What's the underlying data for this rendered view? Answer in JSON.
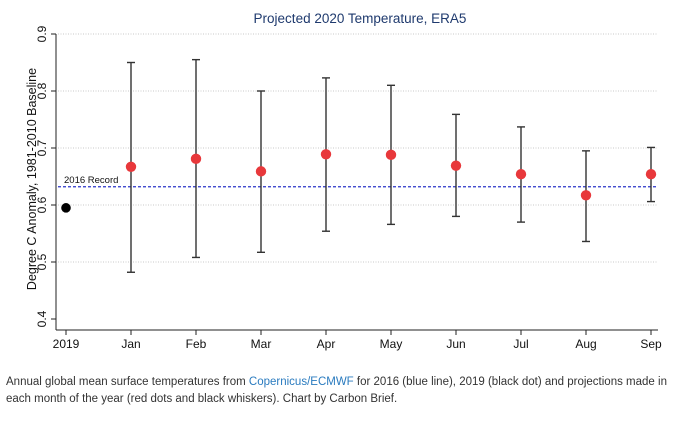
{
  "chart_data": {
    "type": "scatter",
    "title": "Projected 2020 Temperature, ERA5",
    "ylabel": "Degree C Anomaly, 1981-2010 Baseline",
    "xlabel": "",
    "ylim": [
      0.4,
      0.9
    ],
    "yticks": [
      "0.4",
      "0.5",
      "0.6",
      "0.7",
      "0.8",
      "0.9"
    ],
    "grid": true,
    "categories": [
      "2019",
      "Jan",
      "Feb",
      "Mar",
      "Apr",
      "May",
      "Jun",
      "Jul",
      "Aug",
      "Sep"
    ],
    "record": {
      "label": "2016 Record",
      "value": 0.632,
      "color": "#2b35c9"
    },
    "observed": {
      "name": "2019",
      "value": 0.595,
      "color": "#000000"
    },
    "series": [
      {
        "name": "Projection",
        "color": "#e8383b",
        "values": [
          null,
          0.667,
          0.681,
          0.659,
          0.689,
          0.688,
          0.669,
          0.654,
          0.617,
          0.654
        ],
        "low": [
          null,
          0.482,
          0.508,
          0.517,
          0.554,
          0.566,
          0.58,
          0.57,
          0.536,
          0.606
        ],
        "high": [
          null,
          0.85,
          0.855,
          0.8,
          0.823,
          0.81,
          0.759,
          0.737,
          0.695,
          0.701
        ]
      }
    ]
  },
  "caption": {
    "prefix": "Annual global mean surface temperatures from ",
    "link": "Copernicus/ECMWF",
    "suffix": " for 2016 (blue line), 2019 (black dot) and projections made in each month of the year (red dots and black whiskers). Chart by Carbon Brief."
  }
}
